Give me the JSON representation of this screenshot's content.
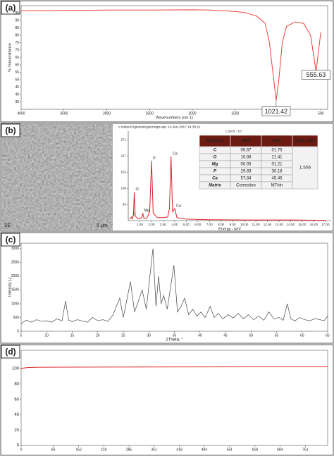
{
  "chart_data": [
    {
      "type": "line",
      "panel": "(a)",
      "x_label": "Wavenumbers (cm-1)",
      "y_label": "% Transmittance",
      "color": "#e8403a",
      "x": [
        4000,
        3500,
        3000,
        2500,
        2000,
        1800,
        1600,
        1400,
        1250,
        1150,
        1100,
        1060,
        1021.42,
        990,
        950,
        900,
        800,
        700,
        620,
        580,
        555.63,
        530,
        500
      ],
      "values": [
        96.5,
        96.8,
        97,
        97,
        97.2,
        97,
        96.5,
        95.5,
        93,
        88,
        75,
        55,
        36,
        50,
        75,
        86,
        89,
        88,
        80,
        65,
        55,
        68,
        82
      ],
      "xlim": [
        4000,
        420
      ],
      "xticks": [
        4000,
        3500,
        3000,
        2500,
        2000,
        1500,
        1000,
        500
      ],
      "ylim": [
        30,
        100
      ],
      "yticks": [
        35,
        40,
        45,
        50,
        55,
        60,
        65,
        70,
        75,
        80,
        85,
        90,
        95
      ],
      "annotations": [
        {
          "text": "1021.42",
          "x": 1021.42,
          "y": 36
        },
        {
          "text": "555.63",
          "x": 555.63,
          "y": 55
        }
      ]
    },
    {
      "type": "spectrum",
      "panel": "(b)",
      "image_labels": [
        "SE",
        "5 μm"
      ],
      "header": "c:\\edax32\\genesis\\genmaps.spc   14-Jun-2017 14:30:11",
      "subheader": "LSecs : 10",
      "x_label": "Energy - keV",
      "color": "#e0202a",
      "x": [
        0.1,
        0.2,
        0.28,
        0.35,
        0.45,
        0.52,
        0.6,
        0.8,
        1.0,
        1.15,
        1.25,
        1.35,
        1.6,
        1.85,
        2.01,
        2.15,
        2.5,
        3.0,
        3.4,
        3.55,
        3.69,
        3.82,
        4.01,
        4.2,
        5,
        7,
        10,
        14,
        17
      ],
      "values": [
        5,
        8,
        12,
        6,
        20,
        95,
        15,
        8,
        6,
        10,
        25,
        8,
        8,
        30,
        200,
        25,
        10,
        10,
        12,
        40,
        215,
        30,
        40,
        10,
        5,
        3,
        2,
        2,
        1
      ],
      "xlim": [
        0,
        17.5
      ],
      "xticks": [
        {
          "value": 1,
          "label": "1.00"
        },
        {
          "value": 2,
          "label": "2.00"
        },
        {
          "value": 3,
          "label": "3.00"
        },
        {
          "value": 4,
          "label": "4.00"
        },
        {
          "value": 5,
          "label": "5.00"
        },
        {
          "value": 6,
          "label": "6.00"
        },
        {
          "value": 7,
          "label": "7.00"
        },
        {
          "value": 8,
          "label": "8.00"
        },
        {
          "value": 9,
          "label": "9.00"
        },
        {
          "value": 10,
          "label": "10.00"
        },
        {
          "value": 11,
          "label": "11.00"
        },
        {
          "value": 12,
          "label": "12.00"
        },
        {
          "value": 13,
          "label": "13.00"
        },
        {
          "value": 14,
          "label": "14.00"
        },
        {
          "value": 15,
          "label": "15.00"
        },
        {
          "value": 16,
          "label": "16.00"
        },
        {
          "value": 17,
          "label": "17.00"
        }
      ],
      "ylim": [
        0,
        300
      ],
      "yticks": [
        54,
        108,
        162,
        217,
        271
      ],
      "peak_labels": [
        {
          "text": "C",
          "x": 0.28,
          "y": 12
        },
        {
          "text": "O",
          "x": 0.52,
          "y": 95
        },
        {
          "text": "Mg",
          "x": 1.25,
          "y": 25
        },
        {
          "text": "P",
          "x": 2.01,
          "y": 200
        },
        {
          "text": "Ca",
          "x": 3.69,
          "y": 215
        },
        {
          "text": "Ca",
          "x": 4.01,
          "y": 40
        }
      ],
      "table": {
        "header": [
          "Element",
          "Wt%",
          "At%",
          "Ca/P ratio"
        ],
        "rows": [
          [
            "C",
            "00.67",
            "01.75"
          ],
          [
            "O",
            "10.88",
            "21.41"
          ],
          [
            "Mg",
            "00.93",
            "01.21"
          ],
          [
            "P",
            "29.69",
            "30.18"
          ],
          [
            "Ca",
            "57.84",
            "45.45"
          ],
          [
            "Matrix",
            "Correction",
            "MThin"
          ]
        ],
        "ratio": "1.506"
      }
    },
    {
      "type": "line",
      "panel": "(c)",
      "x_label": "2Theta, °",
      "y_label": "Intensity [-]",
      "color": "#444444",
      "x": [
        5,
        6,
        7,
        8,
        9,
        10,
        11,
        12,
        13,
        13.7,
        14.3,
        15,
        16,
        17,
        18,
        19,
        20,
        21,
        22,
        23,
        24.3,
        25,
        26.4,
        27.2,
        28.7,
        29.5,
        30.8,
        31.4,
        31.9,
        32.4,
        32.9,
        33.6,
        34.9,
        35.6,
        36.3,
        37,
        37.8,
        38.6,
        39.4,
        40.2,
        41,
        42,
        42.8,
        43.6,
        44.5,
        45.5,
        46.5,
        47.5,
        48.5,
        49.5,
        50.5,
        51.5,
        52.5,
        53.5,
        54.5,
        55.5,
        56.3,
        57.1,
        57.8,
        58.6,
        59.5,
        60.5,
        61.5,
        62.5,
        63.5,
        64.3,
        65
      ],
      "values": [
        280,
        400,
        330,
        420,
        360,
        380,
        330,
        450,
        380,
        1100,
        400,
        350,
        420,
        370,
        330,
        500,
        380,
        420,
        360,
        600,
        1200,
        500,
        1800,
        700,
        1500,
        800,
        3000,
        900,
        2000,
        1000,
        1300,
        800,
        2400,
        700,
        900,
        1200,
        600,
        800,
        550,
        700,
        500,
        900,
        500,
        650,
        450,
        600,
        480,
        650,
        450,
        600,
        420,
        550,
        400,
        700,
        450,
        500,
        400,
        1000,
        450,
        380,
        500,
        420,
        380,
        460,
        420,
        380,
        550
      ],
      "xlim": [
        5,
        65
      ],
      "xticks": [
        5,
        10,
        15,
        20,
        25,
        30,
        35,
        40,
        45,
        50,
        55,
        60,
        65
      ],
      "ylim": [
        0,
        3200
      ],
      "yticks": [
        0,
        500,
        1000,
        1500,
        2000,
        2500,
        3000
      ]
    },
    {
      "type": "line",
      "panel": "(d)",
      "color": "#e02020",
      "x": [
        0,
        10,
        20,
        50,
        100,
        300,
        600,
        810
      ],
      "values": [
        100.5,
        101,
        101.5,
        101.8,
        102,
        102.2,
        102.4,
        102.5
      ],
      "xlim": [
        0,
        810
      ],
      "xticks": [
        0,
        85,
        152,
        218,
        285,
        351,
        418,
        484,
        551,
        618,
        684,
        751
      ],
      "ylim": [
        0,
        124
      ],
      "yticks": [
        0,
        20,
        40,
        60,
        80,
        100
      ]
    }
  ]
}
